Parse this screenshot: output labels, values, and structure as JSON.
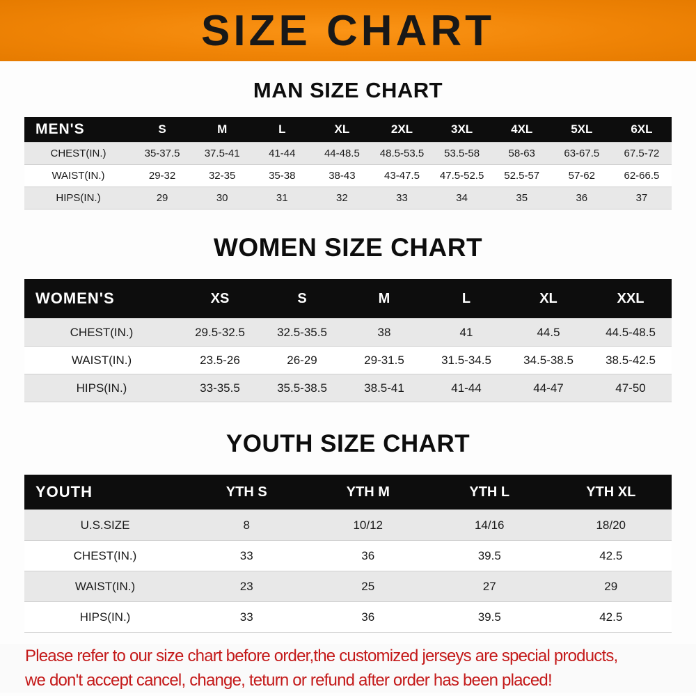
{
  "banner": {
    "title": "SIZE CHART"
  },
  "colors": {
    "banner_orange": "#ef8406",
    "table_header_black": "#0d0d0d",
    "row_stripe_gray": "#e8e8e8",
    "disclaimer_red": "#c41a1a"
  },
  "sections": [
    {
      "id": "men",
      "heading": "MAN SIZE CHART",
      "table": {
        "header_label": "MEN'S",
        "columns": [
          "S",
          "M",
          "L",
          "XL",
          "2XL",
          "3XL",
          "4XL",
          "5XL",
          "6XL"
        ],
        "rows": [
          {
            "label": "CHEST(IN.)",
            "values": [
              "35-37.5",
              "37.5-41",
              "41-44",
              "44-48.5",
              "48.5-53.5",
              "53.5-58",
              "58-63",
              "63-67.5",
              "67.5-72"
            ]
          },
          {
            "label": "WAIST(IN.)",
            "values": [
              "29-32",
              "32-35",
              "35-38",
              "38-43",
              "43-47.5",
              "47.5-52.5",
              "52.5-57",
              "57-62",
              "62-66.5"
            ]
          },
          {
            "label": "HIPS(IN.)",
            "values": [
              "29",
              "30",
              "31",
              "32",
              "33",
              "34",
              "35",
              "36",
              "37"
            ]
          }
        ]
      }
    },
    {
      "id": "women",
      "heading": "WOMEN SIZE CHART",
      "table": {
        "header_label": "WOMEN'S",
        "columns": [
          "XS",
          "S",
          "M",
          "L",
          "XL",
          "XXL"
        ],
        "rows": [
          {
            "label": "CHEST(IN.)",
            "values": [
              "29.5-32.5",
              "32.5-35.5",
              "38",
              "41",
              "44.5",
              "44.5-48.5"
            ]
          },
          {
            "label": "WAIST(IN.)",
            "values": [
              "23.5-26",
              "26-29",
              "29-31.5",
              "31.5-34.5",
              "34.5-38.5",
              "38.5-42.5"
            ]
          },
          {
            "label": "HIPS(IN.)",
            "values": [
              "33-35.5",
              "35.5-38.5",
              "38.5-41",
              "41-44",
              "44-47",
              "47-50"
            ]
          }
        ]
      }
    },
    {
      "id": "youth",
      "heading": "YOUTH SIZE CHART",
      "table": {
        "header_label": "YOUTH",
        "columns": [
          "YTH S",
          "YTH M",
          "YTH L",
          "YTH XL"
        ],
        "rows": [
          {
            "label": "U.S.SIZE",
            "values": [
              "8",
              "10/12",
              "14/16",
              "18/20"
            ]
          },
          {
            "label": "CHEST(IN.)",
            "values": [
              "33",
              "36",
              "39.5",
              "42.5"
            ]
          },
          {
            "label": "WAIST(IN.)",
            "values": [
              "23",
              "25",
              "27",
              "29"
            ]
          },
          {
            "label": "HIPS(IN.)",
            "values": [
              "33",
              "36",
              "39.5",
              "42.5"
            ]
          }
        ]
      }
    }
  ],
  "footer": {
    "lines": [
      "Please refer to our size chart before order,the customized jerseys are special products,",
      "we don't accept cancel, change, teturn or refund after order has been placed!"
    ]
  }
}
